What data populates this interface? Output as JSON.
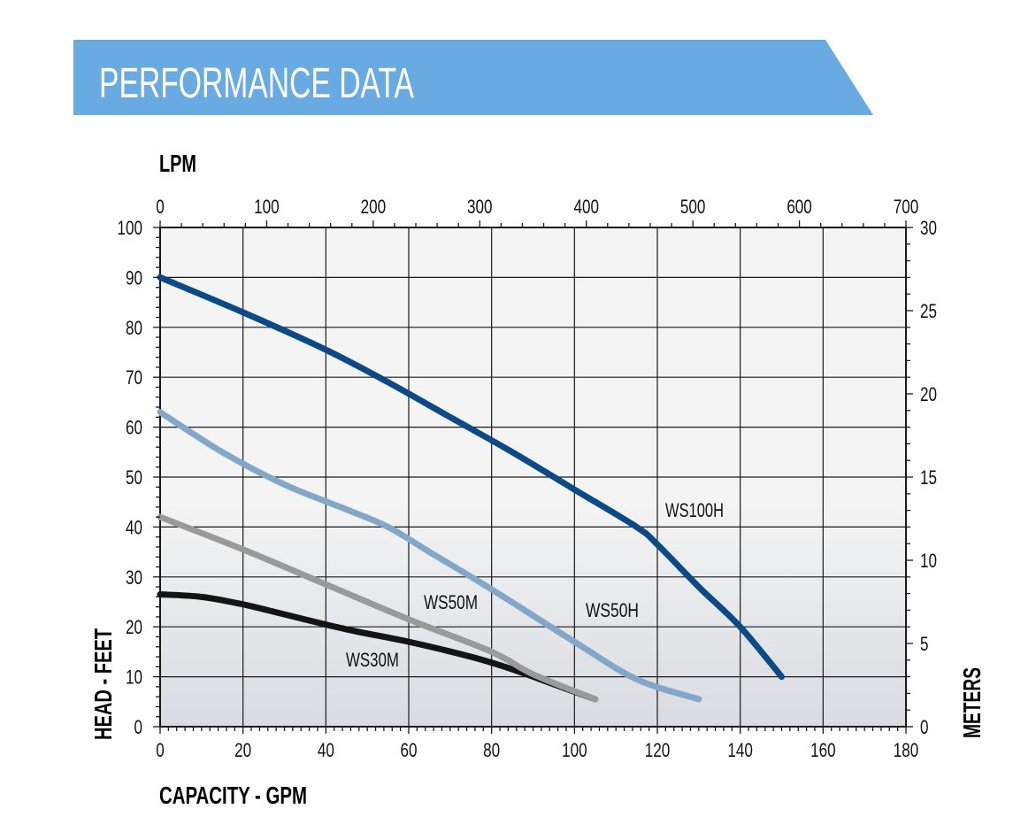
{
  "header": {
    "title": "PERFORMANCE DATA"
  },
  "colors": {
    "banner": "#6aaae2",
    "ws100h": "#0b4a86",
    "ws50h": "#82a7c9",
    "ws50m": "#9a9a9a",
    "ws30m": "#141414",
    "grid": "#1a1a1a",
    "plot_top": "#f4f4f4",
    "plot_bottom": "#d8dbe0"
  },
  "chart_data": {
    "type": "line",
    "title": "PERFORMANCE DATA",
    "xlabel": "CAPACITY - GPM",
    "ylabel": "HEAD - FEET",
    "x2label": "LPM",
    "y2label": "METERS",
    "xlim": [
      0,
      180
    ],
    "ylim": [
      0,
      100
    ],
    "x2lim": [
      0,
      700
    ],
    "y2lim": [
      0,
      30
    ],
    "xticks": [
      "0",
      "20",
      "40",
      "60",
      "80",
      "100",
      "120",
      "140",
      "160",
      "180"
    ],
    "yticks": [
      "0",
      "10",
      "20",
      "30",
      "40",
      "50",
      "60",
      "70",
      "80",
      "90",
      "100"
    ],
    "x2ticks": [
      "0",
      "100",
      "200",
      "300",
      "400",
      "500",
      "600",
      "700"
    ],
    "y2ticks": [
      "0",
      "5",
      "10",
      "15",
      "20",
      "25",
      "30"
    ],
    "grid": true,
    "series": [
      {
        "name": "WS100H",
        "x": [
          0,
          20,
          40,
          55,
          70,
          85,
          100,
          115,
          120,
          130,
          140,
          150
        ],
        "y": [
          90,
          83,
          75.5,
          69,
          62,
          55,
          47.5,
          40,
          36.5,
          28,
          20,
          10
        ]
      },
      {
        "name": "WS50H",
        "x": [
          0,
          15,
          30,
          45,
          55,
          65,
          80,
          100,
          115,
          130
        ],
        "y": [
          63,
          55,
          48.5,
          43.5,
          40,
          35,
          27.5,
          17,
          9.5,
          5.5
        ]
      },
      {
        "name": "WS50M",
        "x": [
          0,
          20,
          40,
          60,
          80,
          90,
          105
        ],
        "y": [
          42,
          35.5,
          28.5,
          21.5,
          15,
          10.5,
          5.5
        ]
      },
      {
        "name": "WS30M",
        "x": [
          0,
          10,
          20,
          30,
          45,
          60,
          75,
          85,
          95,
          105
        ],
        "y": [
          26.5,
          26,
          24.5,
          22.5,
          19.5,
          17,
          14,
          11.5,
          8.5,
          5.5
        ]
      }
    ]
  }
}
